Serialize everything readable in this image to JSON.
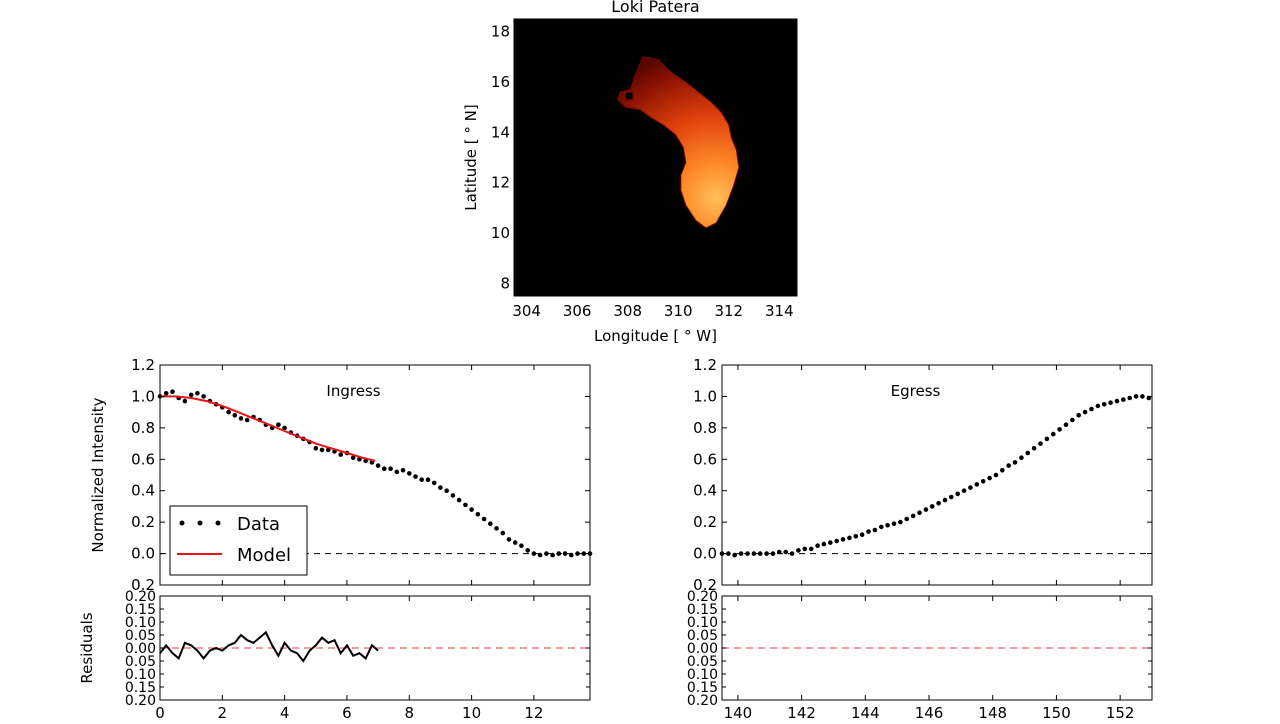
{
  "chart_data": [
    {
      "type": "heatmap",
      "title": "Loki Patera",
      "xlabel": "Longitude [ ° W]",
      "ylabel": "Latitude [ ° N]",
      "xlim": [
        303.5,
        314.7
      ],
      "ylim": [
        7.5,
        18.5
      ],
      "xticks": [
        304,
        306,
        308,
        310,
        312,
        314
      ],
      "yticks": [
        8,
        10,
        12,
        14,
        16,
        18
      ],
      "background": "#000000",
      "colormap": "hot",
      "region_outline_lon_lat": [
        [
          308.6,
          17.0
        ],
        [
          309.2,
          16.9
        ],
        [
          309.7,
          16.4
        ],
        [
          310.3,
          16.0
        ],
        [
          310.8,
          15.6
        ],
        [
          311.3,
          15.2
        ],
        [
          311.7,
          14.8
        ],
        [
          312.0,
          14.3
        ],
        [
          312.1,
          13.8
        ],
        [
          312.3,
          13.3
        ],
        [
          312.4,
          12.6
        ],
        [
          312.2,
          11.9
        ],
        [
          311.9,
          11.1
        ],
        [
          311.5,
          10.4
        ],
        [
          311.1,
          10.2
        ],
        [
          310.7,
          10.5
        ],
        [
          310.3,
          11.1
        ],
        [
          310.1,
          11.7
        ],
        [
          310.1,
          12.3
        ],
        [
          310.3,
          12.8
        ],
        [
          310.2,
          13.4
        ],
        [
          309.9,
          13.9
        ],
        [
          309.4,
          14.3
        ],
        [
          308.9,
          14.6
        ],
        [
          308.5,
          14.9
        ],
        [
          307.9,
          15.0
        ],
        [
          307.6,
          15.3
        ],
        [
          307.7,
          15.6
        ],
        [
          308.1,
          15.7
        ],
        [
          308.3,
          16.3
        ]
      ],
      "brightest_lon_lat": [
        311.7,
        11.6
      ]
    },
    {
      "type": "scatter",
      "title": "Ingress",
      "xlabel": "",
      "ylabel": "Normalized Intensity",
      "xlim": [
        0,
        13.8
      ],
      "ylim": [
        -0.2,
        1.2
      ],
      "xticks": [
        0,
        2,
        4,
        6,
        8,
        10,
        12
      ],
      "yticks": [
        -0.2,
        0.0,
        0.2,
        0.4,
        0.6,
        0.8,
        1.0,
        1.2
      ],
      "ytick_labels": [
        "0.2",
        "0.0",
        "0.2",
        "0.4",
        "0.6",
        "0.8",
        "1.0",
        "1.2"
      ],
      "legend": {
        "placement": "lower-left",
        "entries": [
          "Data",
          "Model"
        ]
      },
      "reference_line": 0.0,
      "data": {
        "x": [
          0.0,
          0.2,
          0.4,
          0.6,
          0.8,
          1.0,
          1.2,
          1.4,
          1.6,
          1.8,
          2.0,
          2.2,
          2.4,
          2.6,
          2.8,
          3.0,
          3.2,
          3.4,
          3.6,
          3.8,
          4.0,
          4.2,
          4.4,
          4.6,
          4.8,
          5.0,
          5.2,
          5.4,
          5.6,
          5.8,
          6.0,
          6.2,
          6.4,
          6.6,
          6.8,
          7.0,
          7.2,
          7.4,
          7.6,
          7.8,
          8.0,
          8.2,
          8.4,
          8.6,
          8.8,
          9.0,
          9.2,
          9.4,
          9.6,
          9.8,
          10.0,
          10.2,
          10.4,
          10.6,
          10.8,
          11.0,
          11.2,
          11.4,
          11.6,
          11.8,
          12.0,
          12.2,
          12.4,
          12.6,
          12.8,
          13.0,
          13.2,
          13.4,
          13.6,
          13.8
        ],
        "y": [
          1.0,
          1.02,
          1.03,
          0.99,
          0.97,
          1.01,
          1.02,
          1.0,
          0.97,
          0.95,
          0.93,
          0.9,
          0.88,
          0.86,
          0.85,
          0.87,
          0.85,
          0.82,
          0.8,
          0.82,
          0.8,
          0.77,
          0.75,
          0.73,
          0.71,
          0.67,
          0.66,
          0.66,
          0.65,
          0.63,
          0.64,
          0.61,
          0.6,
          0.59,
          0.58,
          0.56,
          0.54,
          0.54,
          0.52,
          0.53,
          0.51,
          0.49,
          0.47,
          0.47,
          0.45,
          0.42,
          0.4,
          0.37,
          0.34,
          0.31,
          0.28,
          0.25,
          0.22,
          0.19,
          0.16,
          0.13,
          0.09,
          0.07,
          0.05,
          0.02,
          0.0,
          -0.01,
          0.0,
          -0.01,
          0.0,
          0.0,
          -0.01,
          0.0,
          0.0,
          0.0
        ]
      },
      "model": {
        "x": [
          0.0,
          0.5,
          1.0,
          1.5,
          2.0,
          2.5,
          3.0,
          3.5,
          4.0,
          4.5,
          5.0,
          5.5,
          6.0,
          6.5,
          6.9
        ],
        "y": [
          1.0,
          1.0,
          0.99,
          0.97,
          0.94,
          0.9,
          0.86,
          0.82,
          0.78,
          0.74,
          0.7,
          0.67,
          0.64,
          0.61,
          0.59
        ]
      },
      "residuals": {
        "ylabel": "Residuals",
        "ylim": [
          -0.2,
          0.2
        ],
        "yticks": [
          -0.2,
          -0.15,
          -0.1,
          -0.05,
          0.0,
          0.05,
          0.1,
          0.15,
          0.2
        ],
        "ytick_labels": [
          "0.20",
          "0.15",
          "0.10",
          "0.05",
          "0.00",
          "0.05",
          "0.10",
          "0.15",
          "0.20"
        ],
        "x": [
          0.0,
          0.2,
          0.4,
          0.6,
          0.8,
          1.0,
          1.2,
          1.4,
          1.6,
          1.8,
          2.0,
          2.2,
          2.4,
          2.6,
          2.8,
          3.0,
          3.2,
          3.4,
          3.6,
          3.8,
          4.0,
          4.2,
          4.4,
          4.6,
          4.8,
          5.0,
          5.2,
          5.4,
          5.6,
          5.8,
          6.0,
          6.2,
          6.4,
          6.6,
          6.8,
          7.0
        ],
        "y": [
          -0.02,
          0.01,
          -0.02,
          -0.04,
          0.02,
          0.01,
          -0.01,
          -0.04,
          -0.01,
          0.0,
          -0.01,
          0.01,
          0.02,
          0.05,
          0.03,
          0.02,
          0.04,
          0.06,
          0.01,
          -0.03,
          0.02,
          -0.01,
          -0.02,
          -0.05,
          -0.01,
          0.01,
          0.04,
          0.02,
          0.03,
          -0.02,
          0.01,
          -0.03,
          -0.02,
          -0.04,
          0.01,
          -0.01
        ]
      }
    },
    {
      "type": "scatter",
      "title": "Egress",
      "xlabel": "",
      "ylabel": "",
      "xlim": [
        139.5,
        153.0
      ],
      "ylim": [
        -0.2,
        1.2
      ],
      "xticks": [
        140,
        142,
        144,
        146,
        148,
        150,
        152
      ],
      "yticks": [
        -0.2,
        0.0,
        0.2,
        0.4,
        0.6,
        0.8,
        1.0,
        1.2
      ],
      "ytick_labels": [
        "0.2",
        "0.0",
        "0.2",
        "0.4",
        "0.6",
        "0.8",
        "1.0",
        "1.2"
      ],
      "reference_line": 0.0,
      "data": {
        "x": [
          139.5,
          139.7,
          139.9,
          140.1,
          140.3,
          140.5,
          140.7,
          140.9,
          141.1,
          141.3,
          141.5,
          141.7,
          141.9,
          142.1,
          142.3,
          142.5,
          142.7,
          142.9,
          143.1,
          143.3,
          143.5,
          143.7,
          143.9,
          144.1,
          144.3,
          144.5,
          144.7,
          144.9,
          145.1,
          145.3,
          145.5,
          145.7,
          145.9,
          146.1,
          146.3,
          146.5,
          146.7,
          146.9,
          147.1,
          147.3,
          147.5,
          147.7,
          147.9,
          148.1,
          148.3,
          148.5,
          148.7,
          148.9,
          149.1,
          149.3,
          149.5,
          149.7,
          149.9,
          150.1,
          150.3,
          150.5,
          150.7,
          150.9,
          151.1,
          151.3,
          151.5,
          151.7,
          151.9,
          152.1,
          152.3,
          152.5,
          152.7,
          152.9
        ],
        "y": [
          0.0,
          0.0,
          -0.01,
          0.0,
          0.0,
          0.0,
          0.0,
          0.0,
          0.0,
          0.01,
          0.01,
          0.0,
          0.02,
          0.03,
          0.03,
          0.05,
          0.06,
          0.07,
          0.08,
          0.09,
          0.1,
          0.11,
          0.12,
          0.14,
          0.15,
          0.17,
          0.18,
          0.19,
          0.2,
          0.22,
          0.24,
          0.26,
          0.28,
          0.3,
          0.32,
          0.34,
          0.36,
          0.38,
          0.4,
          0.42,
          0.44,
          0.46,
          0.48,
          0.5,
          0.53,
          0.56,
          0.58,
          0.61,
          0.64,
          0.67,
          0.7,
          0.73,
          0.76,
          0.79,
          0.82,
          0.85,
          0.88,
          0.9,
          0.92,
          0.94,
          0.95,
          0.96,
          0.97,
          0.98,
          0.99,
          1.0,
          1.0,
          0.99
        ]
      },
      "residuals": {
        "ylabel": "",
        "ylim": [
          -0.2,
          0.2
        ],
        "yticks": [
          -0.2,
          -0.15,
          -0.1,
          -0.05,
          0.0,
          0.05,
          0.1,
          0.15,
          0.2
        ],
        "ytick_labels": [
          "0.20",
          "0.15",
          "0.10",
          "0.05",
          "0.00",
          "0.05",
          "0.10",
          "0.15",
          "0.20"
        ],
        "x": [],
        "y": []
      }
    }
  ]
}
